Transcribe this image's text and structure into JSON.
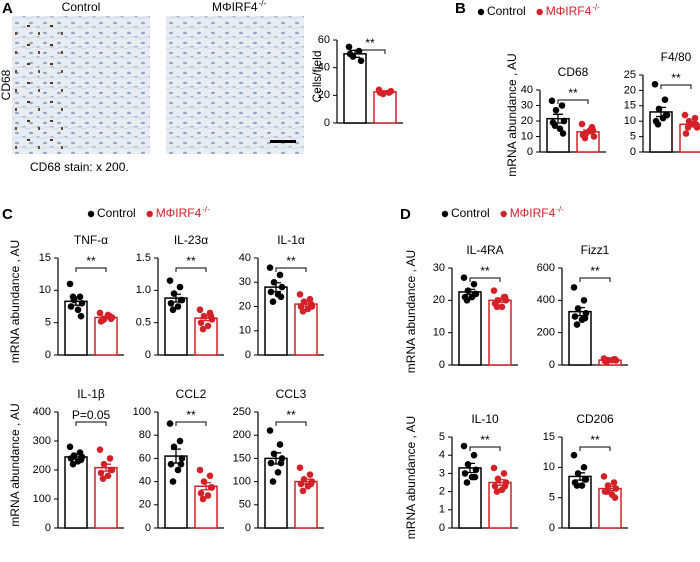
{
  "panel_labels": [
    "A",
    "B",
    "C",
    "D"
  ],
  "images": {
    "labels": [
      "Control",
      "MΦIRF4"
    ],
    "label_sup": "-/-",
    "side_label": "CD68",
    "caption": "CD68 stain: x 200."
  },
  "legend": {
    "names": [
      "Control",
      "MΦIRF4"
    ],
    "sup": "-/-",
    "colors": [
      "#000000",
      "#d42027"
    ]
  },
  "chart_data": [
    {
      "type": "bar",
      "y_label": "Cells/field",
      "ylim": [
        0,
        60
      ],
      "yticks": [
        0,
        20,
        40,
        60
      ],
      "annotation": "**",
      "values": [
        50,
        22.5
      ],
      "errors": [
        2.5,
        0.8
      ],
      "points": [
        [
          55,
          52,
          48,
          45,
          50
        ],
        [
          24,
          22,
          21,
          23,
          22
        ]
      ]
    },
    {
      "type": "bar",
      "title": "CD68",
      "y_label": "mRNA abundance , AU",
      "ylim": [
        0,
        40
      ],
      "yticks": [
        0,
        10,
        20,
        30,
        40
      ],
      "annotation": "**",
      "values": [
        21.5,
        13
      ],
      "errors": [
        2.8,
        1.2
      ],
      "points": [
        [
          33,
          30,
          27,
          20,
          19,
          15,
          17,
          12
        ],
        [
          18,
          16,
          12,
          10,
          11,
          14,
          9,
          14
        ]
      ]
    },
    {
      "type": "bar",
      "title": "F4/80",
      "ylim": [
        0,
        25
      ],
      "yticks": [
        0,
        5,
        10,
        15,
        20,
        25
      ],
      "annotation": "**",
      "values": [
        13,
        9
      ],
      "errors": [
        1.5,
        0.8
      ],
      "points": [
        [
          22,
          17,
          14,
          12,
          10,
          11,
          9,
          12
        ],
        [
          12,
          11,
          10,
          8,
          6,
          9,
          8,
          9
        ]
      ]
    },
    {
      "type": "bar",
      "title": "TNF-α",
      "y_label": "mRNA abundance , AU",
      "ylim": [
        0,
        15
      ],
      "yticks": [
        0,
        5,
        10,
        15
      ],
      "annotation": "**",
      "values": [
        8.3,
        5.8
      ],
      "errors": [
        0.6,
        0.2
      ],
      "points": [
        [
          11,
          9,
          8.5,
          8,
          7.5,
          7,
          9,
          6
        ],
        [
          6.5,
          6,
          5.5,
          5.8,
          5.2,
          6.2,
          5.4,
          5.6
        ]
      ]
    },
    {
      "type": "bar",
      "title": "IL-23α",
      "ylim": [
        0,
        1.5
      ],
      "yticks": [
        0,
        0.5,
        {
          "value": 1,
          "label": "1.0"
        },
        1.5
      ],
      "annotation": "**",
      "values": [
        0.88,
        0.57
      ],
      "errors": [
        0.06,
        0.04
      ],
      "points": [
        [
          1.15,
          1.05,
          0.95,
          0.85,
          0.8,
          0.75,
          0.7,
          0.85
        ],
        [
          0.7,
          0.65,
          0.6,
          0.55,
          0.5,
          0.45,
          0.4,
          0.6
        ]
      ]
    },
    {
      "type": "bar",
      "title": "IL-1α",
      "ylim": [
        0,
        40
      ],
      "yticks": [
        0,
        10,
        20,
        30,
        40
      ],
      "annotation": "**",
      "values": [
        28,
        21
      ],
      "errors": [
        1.8,
        0.9
      ],
      "points": [
        [
          36,
          33,
          30,
          28,
          26,
          25,
          22,
          24
        ],
        [
          25,
          23,
          22,
          20,
          20,
          19,
          18,
          21
        ]
      ]
    },
    {
      "type": "bar",
      "title": "IL-1β",
      "y_label": "mRNA abundance , AU",
      "ylim": [
        0,
        400
      ],
      "yticks": [
        0,
        100,
        200,
        300,
        400
      ],
      "annotation": "P=0.05",
      "values": [
        245,
        208
      ],
      "errors": [
        8,
        12
      ],
      "points": [
        [
          280,
          260,
          250,
          245,
          240,
          230,
          220,
          235
        ],
        [
          270,
          240,
          220,
          200,
          190,
          180,
          170,
          200
        ]
      ]
    },
    {
      "type": "bar",
      "title": "CCL2",
      "ylim": [
        0,
        100
      ],
      "yticks": [
        0,
        20,
        40,
        60,
        80,
        100
      ],
      "annotation": "**",
      "values": [
        62,
        36
      ],
      "errors": [
        6,
        3
      ],
      "points": [
        [
          90,
          75,
          70,
          60,
          55,
          50,
          40,
          55
        ],
        [
          50,
          45,
          40,
          35,
          30,
          28,
          25,
          35
        ]
      ]
    },
    {
      "type": "bar",
      "title": "CCL3",
      "ylim": [
        0,
        250
      ],
      "yticks": [
        0,
        50,
        100,
        150,
        200,
        250
      ],
      "annotation": "**",
      "values": [
        150,
        100
      ],
      "errors": [
        12,
        5
      ],
      "points": [
        [
          210,
          180,
          160,
          150,
          140,
          120,
          100,
          140
        ],
        [
          130,
          115,
          105,
          100,
          95,
          90,
          80,
          95
        ]
      ]
    },
    {
      "type": "bar",
      "title": "IL-4RA",
      "y_label": "mRNA abundance , AU",
      "ylim": [
        0,
        30
      ],
      "yticks": [
        0,
        10,
        20,
        30
      ],
      "annotation": "**",
      "values": [
        22.6,
        20
      ],
      "errors": [
        0.8,
        0.6
      ],
      "points": [
        [
          27,
          25,
          23,
          22,
          21,
          21,
          20,
          22
        ],
        [
          23,
          21,
          20,
          20,
          19,
          18,
          18,
          21
        ]
      ]
    },
    {
      "type": "bar",
      "title": "Fizz1",
      "ylim": [
        0,
        600
      ],
      "yticks": [
        0,
        200,
        400,
        600
      ],
      "annotation": "**",
      "values": [
        330,
        30
      ],
      "errors": [
        25,
        3
      ],
      "points": [
        [
          480,
          400,
          350,
          320,
          300,
          280,
          250,
          290
        ],
        [
          40,
          35,
          30,
          28,
          25,
          30,
          22,
          35
        ]
      ]
    },
    {
      "type": "bar",
      "title": "IL-10",
      "y_label": "mRNA abundance , AU",
      "ylim": [
        0,
        5
      ],
      "yticks": [
        0,
        1,
        2,
        3,
        4,
        5
      ],
      "annotation": "**",
      "values": [
        3.3,
        2.5
      ],
      "errors": [
        0.25,
        0.15
      ],
      "points": [
        [
          4.5,
          4,
          3.5,
          3.2,
          3,
          2.8,
          2.5,
          2.8
        ],
        [
          3.3,
          3,
          2.7,
          2.5,
          2.3,
          2.1,
          2,
          2.3
        ]
      ]
    },
    {
      "type": "bar",
      "title": "CD206",
      "ylim": [
        0,
        15
      ],
      "yticks": [
        0,
        5,
        10,
        15
      ],
      "annotation": "**",
      "values": [
        8.5,
        6.5
      ],
      "errors": [
        0.6,
        0.35
      ],
      "points": [
        [
          12,
          10,
          9,
          8,
          7.5,
          7,
          7,
          8
        ],
        [
          8.5,
          7.5,
          7,
          6.5,
          6,
          5.5,
          6,
          5
        ]
      ]
    }
  ]
}
